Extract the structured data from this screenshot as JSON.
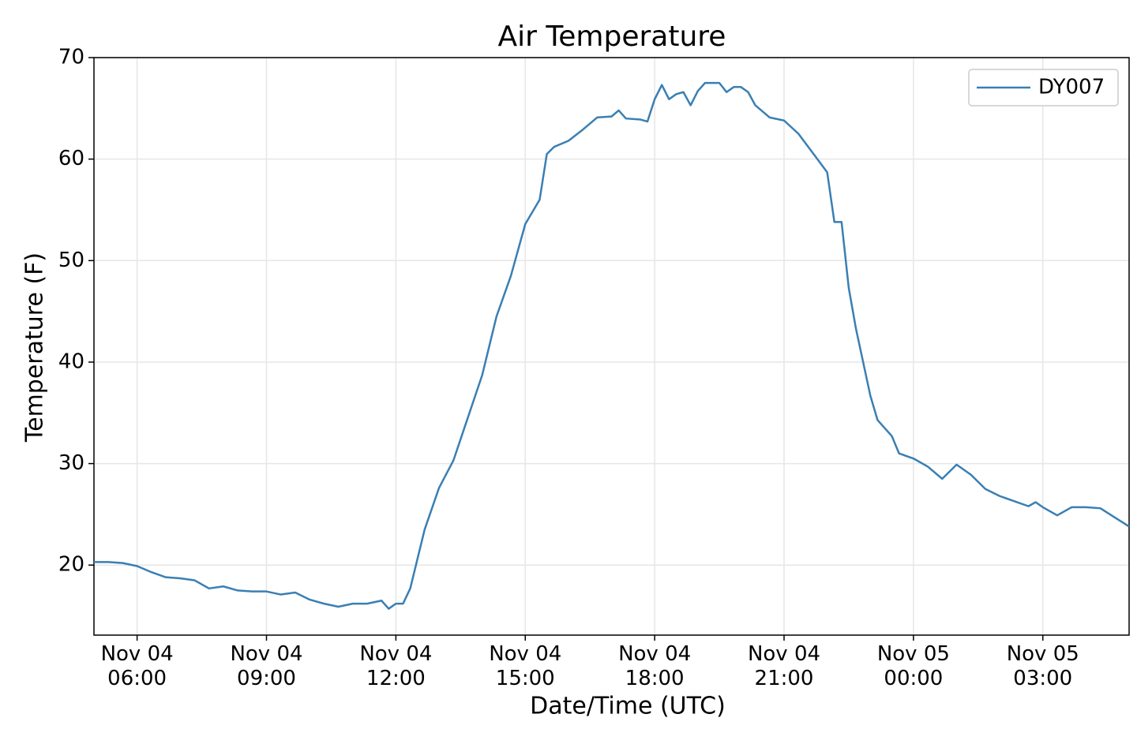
{
  "chart_data": {
    "type": "line",
    "title": "Air Temperature",
    "xlabel": "Date/Time (UTC)",
    "ylabel": "Temperature (F)",
    "x": [
      "Nov 04 05:00",
      "Nov 04 05:20",
      "Nov 04 05:40",
      "Nov 04 06:00",
      "Nov 04 06:20",
      "Nov 04 06:40",
      "Nov 04 07:00",
      "Nov 04 07:20",
      "Nov 04 07:40",
      "Nov 04 08:00",
      "Nov 04 08:20",
      "Nov 04 08:40",
      "Nov 04 09:00",
      "Nov 04 09:20",
      "Nov 04 09:40",
      "Nov 04 10:00",
      "Nov 04 10:20",
      "Nov 04 10:40",
      "Nov 04 11:00",
      "Nov 04 11:20",
      "Nov 04 11:40",
      "Nov 04 11:50",
      "Nov 04 12:00",
      "Nov 04 12:10",
      "Nov 04 12:20",
      "Nov 04 12:40",
      "Nov 04 13:00",
      "Nov 04 13:20",
      "Nov 04 13:40",
      "Nov 04 14:00",
      "Nov 04 14:20",
      "Nov 04 14:40",
      "Nov 04 15:00",
      "Nov 04 15:20",
      "Nov 04 15:30",
      "Nov 04 15:40",
      "Nov 04 16:00",
      "Nov 04 16:20",
      "Nov 04 16:40",
      "Nov 04 17:00",
      "Nov 04 17:10",
      "Nov 04 17:20",
      "Nov 04 17:40",
      "Nov 04 17:50",
      "Nov 04 18:00",
      "Nov 04 18:10",
      "Nov 04 18:20",
      "Nov 04 18:30",
      "Nov 04 18:40",
      "Nov 04 18:50",
      "Nov 04 19:00",
      "Nov 04 19:10",
      "Nov 04 19:30",
      "Nov 04 19:40",
      "Nov 04 19:50",
      "Nov 04 20:00",
      "Nov 04 20:10",
      "Nov 04 20:20",
      "Nov 04 20:40",
      "Nov 04 21:00",
      "Nov 04 21:20",
      "Nov 04 21:40",
      "Nov 04 22:00",
      "Nov 04 22:10",
      "Nov 04 22:20",
      "Nov 04 22:30",
      "Nov 04 22:40",
      "Nov 04 23:00",
      "Nov 04 23:10",
      "Nov 04 23:30",
      "Nov 04 23:40",
      "Nov 05 00:00",
      "Nov 05 00:20",
      "Nov 05 00:40",
      "Nov 05 01:00",
      "Nov 05 01:20",
      "Nov 05 01:40",
      "Nov 05 02:00",
      "Nov 05 02:20",
      "Nov 05 02:40",
      "Nov 05 02:50",
      "Nov 05 03:00",
      "Nov 05 03:20",
      "Nov 05 03:40",
      "Nov 05 04:00",
      "Nov 05 04:20",
      "Nov 05 04:40",
      "Nov 05 05:00"
    ],
    "series": [
      {
        "name": "DY007",
        "color": "#3a7fb3",
        "values": [
          20.3,
          20.3,
          20.2,
          19.9,
          19.3,
          18.8,
          18.7,
          18.5,
          17.7,
          17.9,
          17.5,
          17.4,
          17.4,
          17.1,
          17.3,
          16.6,
          16.2,
          15.9,
          16.2,
          16.2,
          16.5,
          15.7,
          16.2,
          16.2,
          17.7,
          23.5,
          27.6,
          30.3,
          34.5,
          38.7,
          44.5,
          48.5,
          53.6,
          56.0,
          60.5,
          61.2,
          61.8,
          62.9,
          64.1,
          64.2,
          64.8,
          64.0,
          63.9,
          63.7,
          65.9,
          67.3,
          65.9,
          66.4,
          66.6,
          65.3,
          66.7,
          67.5,
          67.5,
          66.6,
          67.1,
          67.1,
          66.6,
          65.3,
          64.1,
          63.8,
          62.5,
          60.6,
          58.7,
          53.8,
          53.8,
          47.3,
          43.3,
          36.7,
          34.3,
          32.7,
          31.0,
          30.5,
          29.7,
          28.5,
          29.9,
          28.9,
          27.5,
          26.8,
          26.3,
          25.8,
          26.2,
          25.7,
          24.9,
          25.7,
          25.7,
          25.6,
          24.7,
          23.8
        ]
      }
    ],
    "xlim": [
      "Nov 04 05:00",
      "Nov 05 05:00"
    ],
    "xticks": [
      "Nov 04 06:00",
      "Nov 04 09:00",
      "Nov 04 12:00",
      "Nov 04 15:00",
      "Nov 04 18:00",
      "Nov 04 21:00",
      "Nov 05 00:00",
      "Nov 05 03:00"
    ],
    "ylim": [
      13.1,
      70
    ],
    "yticks": [
      20,
      30,
      40,
      50,
      60,
      70
    ],
    "grid": true,
    "legend": "upper right"
  }
}
